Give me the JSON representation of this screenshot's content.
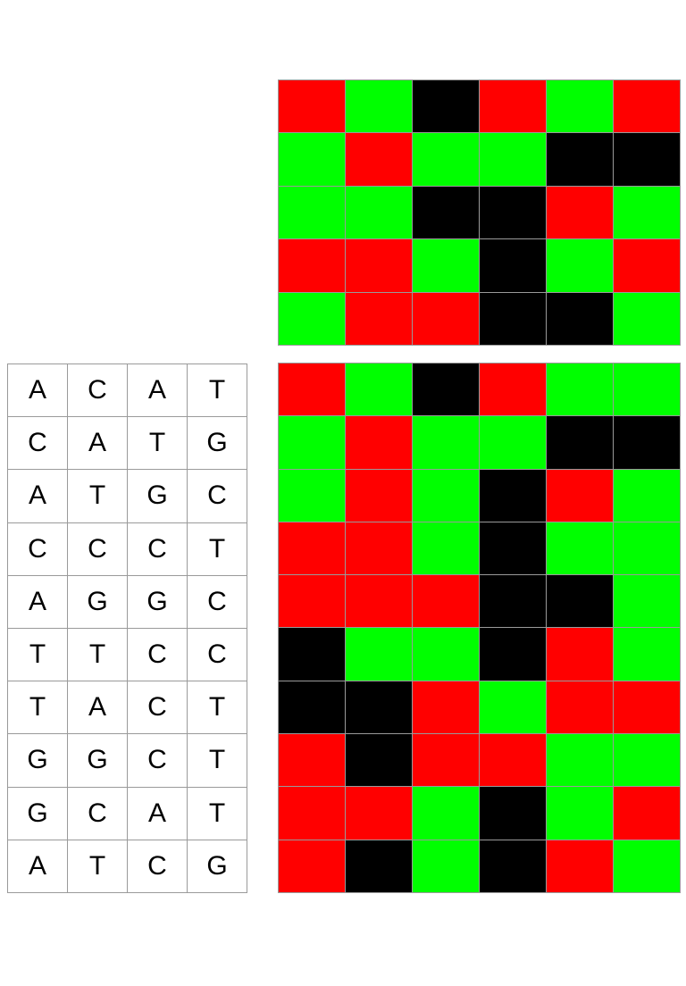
{
  "colors": {
    "R": "#ff0000",
    "G": "#00ff00",
    "B": "#000000"
  },
  "top_grid": {
    "rows": [
      [
        "R",
        "G",
        "B",
        "R",
        "G",
        "R"
      ],
      [
        "G",
        "R",
        "G",
        "G",
        "B",
        "B"
      ],
      [
        "G",
        "G",
        "B",
        "B",
        "R",
        "G"
      ],
      [
        "R",
        "R",
        "G",
        "B",
        "G",
        "R"
      ],
      [
        "G",
        "R",
        "R",
        "B",
        "B",
        "G"
      ]
    ]
  },
  "bottom_grid": {
    "rows": [
      [
        "R",
        "G",
        "B",
        "R",
        "G",
        "G"
      ],
      [
        "G",
        "R",
        "G",
        "G",
        "B",
        "B"
      ],
      [
        "G",
        "R",
        "G",
        "B",
        "R",
        "G"
      ],
      [
        "R",
        "R",
        "G",
        "B",
        "G",
        "G"
      ],
      [
        "R",
        "R",
        "R",
        "B",
        "B",
        "G"
      ],
      [
        "B",
        "G",
        "G",
        "B",
        "R",
        "G"
      ],
      [
        "B",
        "B",
        "R",
        "G",
        "R",
        "R"
      ],
      [
        "R",
        "B",
        "R",
        "R",
        "G",
        "G"
      ],
      [
        "R",
        "R",
        "G",
        "B",
        "G",
        "R"
      ],
      [
        "R",
        "B",
        "G",
        "B",
        "R",
        "G"
      ]
    ]
  },
  "sequence_grid": {
    "rows": [
      [
        "A",
        "C",
        "A",
        "T"
      ],
      [
        "C",
        "A",
        "T",
        "G"
      ],
      [
        "A",
        "T",
        "G",
        "C"
      ],
      [
        "C",
        "C",
        "C",
        "T"
      ],
      [
        "A",
        "G",
        "G",
        "C"
      ],
      [
        "T",
        "T",
        "C",
        "C"
      ],
      [
        "T",
        "A",
        "C",
        "T"
      ],
      [
        "G",
        "G",
        "C",
        "T"
      ],
      [
        "G",
        "C",
        "A",
        "T"
      ],
      [
        "A",
        "T",
        "C",
        "G"
      ]
    ]
  }
}
